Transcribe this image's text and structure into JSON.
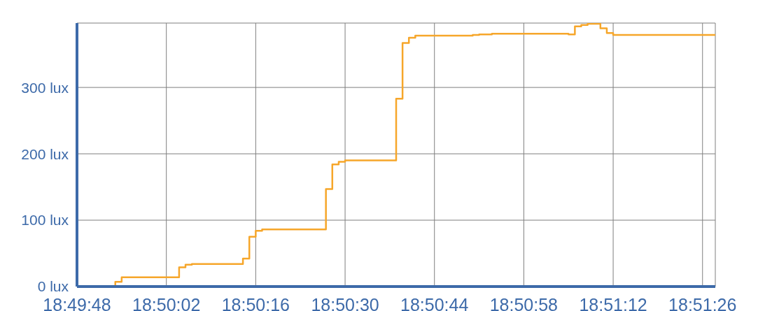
{
  "chart_data": {
    "type": "step",
    "x": [
      18.83,
      18.831667,
      18.831944,
      18.834444,
      18.834722,
      18.835,
      18.837222,
      18.8375,
      18.837778,
      18.838056,
      18.840833,
      18.841111,
      18.841389,
      18.841667,
      18.843889,
      18.844167,
      18.844444,
      18.844722,
      18.847222,
      18.8475,
      18.848056,
      18.851389,
      18.851667,
      18.851944,
      18.852222,
      18.852778,
      18.853056,
      18.853333,
      18.857778
    ],
    "series": [
      {
        "color": "#f6a62a",
        "values": [
          0,
          7,
          14,
          29,
          33,
          34,
          42,
          75,
          84,
          86,
          147,
          184,
          188,
          190,
          283,
          367,
          375,
          378,
          379,
          380,
          381,
          380,
          392,
          394,
          396,
          389,
          382,
          379,
          379
        ]
      }
    ],
    "xlim": [
      18.83,
      18.857778
    ],
    "xticks": [
      {
        "value": 18.83,
        "label": "18:49:48"
      },
      {
        "value": 18.833889,
        "label": "18:50:02"
      },
      {
        "value": 18.837778,
        "label": "18:50:16"
      },
      {
        "value": 18.841667,
        "label": "18:50:30"
      },
      {
        "value": 18.845556,
        "label": "18:50:44"
      },
      {
        "value": 18.849444,
        "label": "18:50:58"
      },
      {
        "value": 18.853333,
        "label": "18:51:12"
      },
      {
        "value": 18.857222,
        "label": "18:51:26"
      }
    ],
    "ylim": [
      0,
      397
    ],
    "yticks": [
      {
        "value": 0,
        "label": "0 lux"
      },
      {
        "value": 100,
        "label": "100 lux"
      },
      {
        "value": 200,
        "label": "200 lux"
      },
      {
        "value": 300,
        "label": "300 lux"
      }
    ],
    "grid": true
  }
}
